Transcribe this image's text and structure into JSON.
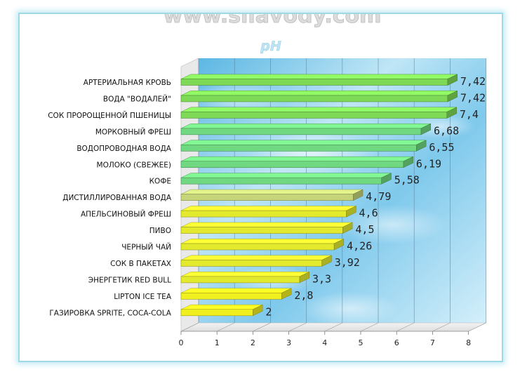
{
  "header": {
    "watermark": "www.silavody.com"
  },
  "chart_data": {
    "type": "bar",
    "orientation": "horizontal",
    "title": "pH",
    "categories": [
      "АРТЕРИАЛЬНАЯ КРОВЬ",
      "ВОДА \"ВОДАЛЕЙ\"",
      "СОК ПРОРОЩЕННОЙ ПШЕНИЦЫ",
      "МОРКОВНЫЙ ФРЕШ",
      "ВОДОПРОВОДНАЯ ВОДА",
      "МОЛОКО (СВЕЖЕЕ)",
      "КОФЕ",
      "ДИСТИЛЛИРОВАННАЯ ВОДА",
      "АПЕЛЬСИНОВЫЙ ФРЕШ",
      "ПИВО",
      "ЧЕРНЫЙ ЧАЙ",
      "СОК В ПАКЕТАХ",
      "ЭНЕРГЕТИК RED BULL",
      "LIPTON ICE TEA",
      "ГАЗИРОВКА SPRITE, COCA-COLA"
    ],
    "values": [
      7.42,
      7.42,
      7.4,
      6.68,
      6.55,
      6.19,
      5.58,
      4.79,
      4.6,
      4.5,
      4.26,
      3.92,
      3.3,
      2.8,
      2
    ],
    "value_labels": [
      "7,42",
      "7,42",
      "7,4",
      "6,68",
      "6,55",
      "6,19",
      "5,58",
      "4,79",
      "4,6",
      "4,5",
      "4,26",
      "3,92",
      "3,3",
      "2,8",
      "2"
    ],
    "xticks": [
      "0",
      "1",
      "2",
      "3",
      "4",
      "5",
      "6",
      "7",
      "8"
    ],
    "xlim": [
      0,
      8
    ],
    "grid": true,
    "legend": "none",
    "colors": {
      "high_ph": "#7ed957",
      "mid_ph": "#70d880",
      "neutral": "#c6d47a",
      "acidic": "#e3ea2e",
      "very_acidic": "#f0f020",
      "wall": "#9fcfe9"
    }
  }
}
